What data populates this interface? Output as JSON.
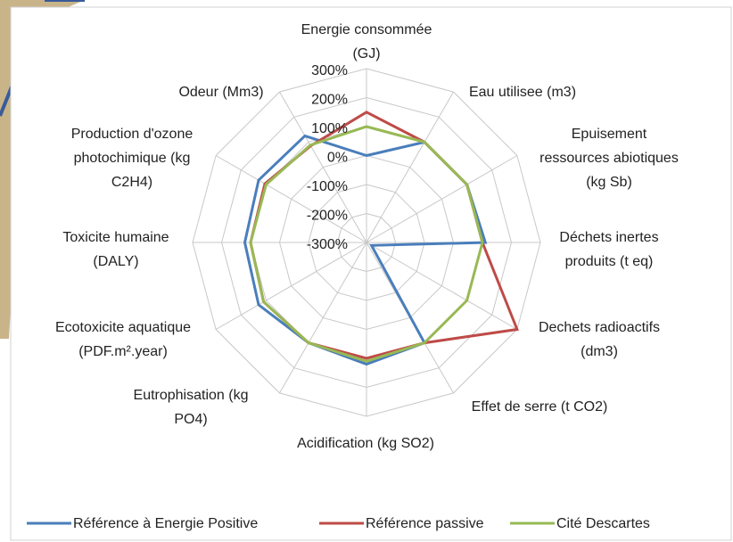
{
  "chart_data": {
    "type": "radar",
    "categories": [
      "Energie consommée\n(GJ)",
      "Eau utilisee (m3)",
      "Epuisement\nressources abiotiques\n(kg Sb)",
      "Déchets inertes\nproduits (t eq)",
      "Dechets radioactifs\n(dm3)",
      "Effet de serre (t CO2)",
      "Acidification (kg SO2)",
      "Eutrophisation (kg\nPO4)",
      "Ecotoxicite aquatique\n(PDF.m².year)",
      "Toxicite humaine\n(DALY)",
      "Production d'ozone\nphotochimique (kg\nC2H4)",
      "Odeur (Mm3)"
    ],
    "series": [
      {
        "name": "Référence à Energie Positive",
        "color": "#4a7ebb",
        "values": [
          0,
          100,
          100,
          110,
          -280,
          100,
          120,
          100,
          130,
          120,
          130,
          125
        ]
      },
      {
        "name": "Référence passive",
        "color": "#be4b48",
        "values": [
          150,
          100,
          100,
          100,
          300,
          100,
          100,
          100,
          110,
          100,
          105,
          85
        ]
      },
      {
        "name": "Cité Descartes",
        "color": "#98b954",
        "values": [
          100,
          100,
          100,
          100,
          100,
          100,
          110,
          100,
          110,
          100,
          100,
          88
        ]
      }
    ],
    "ylim": [
      -300,
      300
    ],
    "yticks": [
      {
        "value": 300,
        "label": "300%"
      },
      {
        "value": 200,
        "label": "200%"
      },
      {
        "value": 100,
        "label": "100%"
      },
      {
        "value": 0,
        "label": "0%"
      },
      {
        "value": -100,
        "label": "-100%"
      },
      {
        "value": -200,
        "label": "-200%"
      },
      {
        "value": -300,
        "label": "-300%"
      }
    ],
    "grid": true
  }
}
